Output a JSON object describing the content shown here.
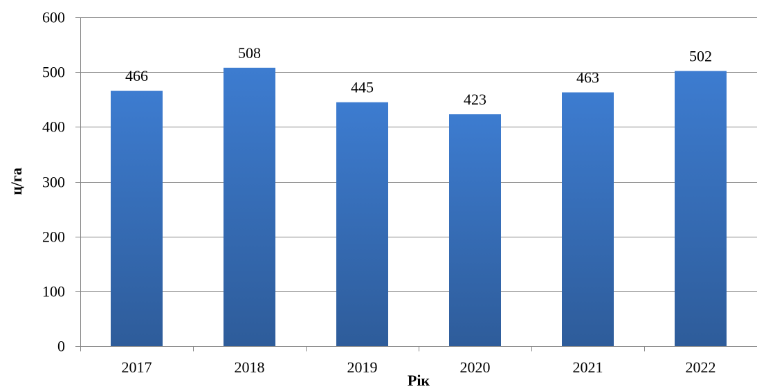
{
  "chart_data": {
    "type": "bar",
    "title": "",
    "xlabel": "Рік",
    "ylabel": "ц/га",
    "categories": [
      "2017",
      "2018",
      "2019",
      "2020",
      "2021",
      "2022"
    ],
    "series": [
      {
        "values": [
          466,
          508,
          445,
          423,
          463,
          502
        ],
        "color": "#3a75c4"
      }
    ],
    "ylim": [
      0,
      600
    ],
    "yticks": [
      0,
      100,
      200,
      300,
      400,
      500,
      600
    ],
    "data_labels": true,
    "grid": true,
    "legend": "none"
  }
}
